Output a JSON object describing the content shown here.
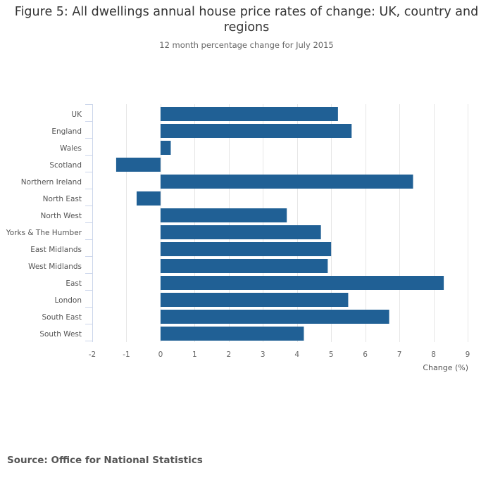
{
  "chart_data": {
    "type": "bar",
    "orientation": "horizontal",
    "title": "Figure 5: All dwellings annual house price rates of change: UK, country and regions",
    "subtitle": "12 month percentage change for July 2015",
    "xlabel": "Change (%)",
    "ylabel": "",
    "categories": [
      "UK",
      "England",
      "Wales",
      "Scotland",
      "Northern Ireland",
      "North East",
      "North West",
      "Yorks & The Humber",
      "East Midlands",
      "West Midlands",
      "East",
      "London",
      "South East",
      "South West"
    ],
    "values": [
      5.2,
      5.6,
      0.3,
      -1.3,
      7.4,
      -0.7,
      3.7,
      4.7,
      5.0,
      4.9,
      8.3,
      5.5,
      6.7,
      4.2
    ],
    "xlim": [
      -2,
      9
    ],
    "xticks": [
      "-2",
      "-1",
      "0",
      "1",
      "2",
      "3",
      "4",
      "5",
      "6",
      "7",
      "8",
      "9"
    ],
    "grid": true,
    "legend": "none",
    "bar_color": "#206095"
  },
  "source": "Source: Office for National Statistics"
}
